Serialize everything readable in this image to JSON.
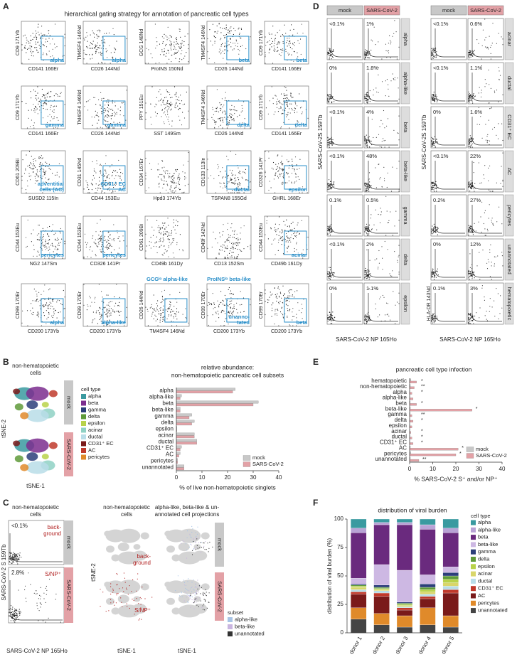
{
  "panel_labels": [
    "A",
    "B",
    "C",
    "D",
    "E",
    "F"
  ],
  "gating": {
    "title": "hierarchical gating strategy for annotation of pancreatic cell types",
    "plots": [
      {
        "y": "CD9 171Yb",
        "x": "CD141 166Er",
        "labels": [
          "alpha"
        ]
      },
      {
        "y": "TM4SF4 146Nd",
        "x": "CD26 144Nd",
        "labels": [
          "alpha"
        ]
      },
      {
        "y": "GCG 148Nd",
        "x": "ProINS 150Nd"
      },
      {
        "y": "TM4SF4 146Nd",
        "x": "CD26 144Nd",
        "labels": [
          "beta"
        ]
      },
      {
        "y": "CD9 171Yb",
        "x": "CD141 166Er",
        "labels": [
          "beta"
        ]
      },
      {
        "y": "CD9 171Yb",
        "x": "CD141 166Er",
        "labels": [
          "gamma"
        ]
      },
      {
        "y": "TM4SF4 146Nd",
        "x": "CD26 144Nd",
        "labels": [
          "gamma"
        ]
      },
      {
        "y": "PPY 151Eu",
        "x": "SST 149Sm"
      },
      {
        "y": "TM4SF4 146Nd",
        "x": "CD26 144Nd",
        "labels": [
          "delta"
        ]
      },
      {
        "y": "CD9 171Yb",
        "x": "CD141 166Er",
        "labels": [
          "delta"
        ]
      },
      {
        "y": "CD61 209Bi",
        "x": "SUSD2 115In",
        "labels": [
          "adventitial",
          "cells (AC)"
        ]
      },
      {
        "y": "CD31 145Nd",
        "x": "CD44 153Eu",
        "labels": [
          "CD31⁺ EC",
          "AC"
        ]
      },
      {
        "y": "CD34 167Er",
        "x": "Hpd3 174Yb"
      },
      {
        "y": "CD133 113In",
        "x": "TSPAN8 155Gd",
        "labels": [
          "ductal"
        ]
      },
      {
        "y": "CD326 141Pr",
        "x": "GHRL 168Er",
        "labels": [
          "epsilon"
        ]
      },
      {
        "y": "CD44 153Eu",
        "x": "NG2 147Sm",
        "labels": [
          "pericytes"
        ]
      },
      {
        "y": "CD44 153Eu",
        "x": "CD326 141Pr",
        "labels": [
          "pericytes"
        ]
      },
      {
        "y": "CD61 209Bi",
        "x": "CD49b 161Dy"
      },
      {
        "y": "CD49f 142Nd",
        "x": "CD13 152Sm"
      },
      {
        "y": "CD44 153Eu",
        "x": "CD49b 161Dy",
        "labels": [
          "acinar"
        ]
      },
      {
        "y": "CD99 170Er",
        "x": "CD200 173Yb",
        "labels": [
          "alpha"
        ]
      },
      {
        "y": "CD99 170Er",
        "x": "CD200 173Yb",
        "labels": [
          "alpha-like"
        ]
      },
      {
        "y": "CD26 144Nd",
        "x": "TM4SF4 146Nd",
        "caption": "GCGˡᵒ alpha-like"
      },
      {
        "y": "CD99 170Er",
        "x": "CD200 173Yb",
        "caption": "ProINSˡᵒ beta-like",
        "labels": [
          "unanno-",
          "tated"
        ]
      },
      {
        "y": "CD99 170Er",
        "x": "CD200 173Yb",
        "labels": [
          "beta"
        ]
      }
    ]
  },
  "infection_grid": {
    "columns": [
      "mock",
      "SARS-CoV-2"
    ],
    "blocks": [
      {
        "y_label": "SARS-CoV-2S 159Tb",
        "x_label": "SARS-CoV-2 NP 165Ho",
        "rows": [
          {
            "name": "alpha",
            "mock": "<0.1%",
            "infected": "1%"
          },
          {
            "name": "alpha-like",
            "mock": "0%",
            "infected": "1.8%"
          },
          {
            "name": "beta",
            "mock": "<0.1%",
            "infected": "4%"
          },
          {
            "name": "beta-like",
            "mock": "<0.1%",
            "infected": "48%"
          },
          {
            "name": "gamma",
            "mock": "0.1%",
            "infected": "0.5%"
          },
          {
            "name": "delta",
            "mock": "<0.1%",
            "infected": "2%"
          },
          {
            "name": "epsilon",
            "mock": "0%",
            "infected": "1.1%"
          }
        ]
      },
      {
        "y_label": "SARS-CoV-2S 159Tb",
        "x_label": "SARS-CoV-2 NP 165Ho",
        "rows": [
          {
            "name": "acinar",
            "mock": "<0.1%",
            "infected": "0.6%"
          },
          {
            "name": "ductal",
            "mock": "<0.1%",
            "infected": "1.1%"
          },
          {
            "name": "CD31⁺ EC",
            "mock": "0%",
            "infected": "1.6%"
          },
          {
            "name": "AC",
            "mock": "<0.1%",
            "infected": "22%"
          },
          {
            "name": "pericytes",
            "mock": "0.2%",
            "infected": "27%"
          },
          {
            "name": "unannotated",
            "mock": "0%",
            "infected": "12%"
          },
          {
            "name": "hematopoietic",
            "mock": "0.1%",
            "infected": "3%",
            "y_label": "HLA-DR 143Nd"
          }
        ]
      }
    ]
  },
  "tsne": {
    "title": [
      "non-hematopoietic",
      "cells"
    ],
    "legend_title": "cell type",
    "legend": [
      {
        "name": "alpha",
        "color": "#3a9aa0"
      },
      {
        "name": "beta",
        "color": "#7b2d8e"
      },
      {
        "name": "gamma",
        "color": "#2c3e7a"
      },
      {
        "name": "delta",
        "color": "#5f9a3a"
      },
      {
        "name": "epsilon",
        "color": "#b8d24a"
      },
      {
        "name": "acinar",
        "color": "#8fd1c4"
      },
      {
        "name": "ductal",
        "color": "#b9dde8"
      },
      {
        "name": "CD31⁺ EC",
        "color": "#7a1a1a"
      },
      {
        "name": "AC",
        "color": "#c0392b"
      },
      {
        "name": "pericytes",
        "color": "#e08a2a"
      }
    ],
    "conditions": [
      "mock",
      "SARS-CoV-2"
    ],
    "y_label": "tSNE-2",
    "x_label": "tSNE-1"
  },
  "infection_example": {
    "title": [
      "non-hematopoietic",
      "cells"
    ],
    "y_label": "SARS-CoV-2 S 159Tb",
    "x_label": "SARS-CoV-2 NP 165Ho",
    "conditions": [
      "mock",
      "SARS-CoV-2"
    ],
    "percent": [
      "<0.1%",
      "2.8%"
    ],
    "gate_labels": [
      [
        "back-",
        "ground"
      ],
      [
        "S/NP⁺"
      ]
    ]
  },
  "projections": {
    "titles": [
      [
        "non-hematopoietic",
        "cells"
      ],
      [
        "alpha-like, beta-like & un-",
        "annotated cell projections"
      ]
    ],
    "y_label": "tSNE-2",
    "x_label": "tSNE-1",
    "legend_title": "subset",
    "legend": [
      {
        "name": "alpha-like",
        "color": "#a8c4e6"
      },
      {
        "name": "beta-like",
        "color": "#c9b5e0"
      },
      {
        "name": "unannotated",
        "color": "#333333"
      }
    ]
  },
  "chart_data": [
    {
      "type": "bar",
      "orientation": "horizontal",
      "title": [
        "relative abundance:",
        "non-hematopoietic pancreatic cell subsets"
      ],
      "categories": [
        "alpha",
        "alpha-like",
        "beta",
        "beta-like",
        "gamma",
        "delta",
        "epsilon",
        "acinar",
        "ductal",
        "CD31⁺ EC",
        "AC",
        "pericytes",
        "unannotated"
      ],
      "series": [
        {
          "name": "mock",
          "color": "#c8c8c8",
          "values": [
            23,
            2,
            32,
            1.5,
            6,
            7,
            0.2,
            7,
            8,
            2,
            1.5,
            0.5,
            3
          ]
        },
        {
          "name": "SARS-CoV-2",
          "color": "#e3a1a6",
          "values": [
            22,
            1.5,
            30,
            1.5,
            5,
            6,
            0.2,
            7,
            8,
            1.5,
            1,
            0.5,
            3
          ]
        }
      ],
      "xlim": [
        0,
        40
      ],
      "xticks": [
        0,
        10,
        20,
        30,
        40
      ],
      "x_label": "% of live non-hematopoietic singlets",
      "legend": "bottom-right"
    },
    {
      "type": "bar",
      "orientation": "horizontal",
      "title": [
        "pancreatic cell type infection"
      ],
      "categories": [
        "hematopoietic",
        "non-hematopoietic",
        "alpha",
        "alpha-like",
        "beta",
        "beta-like",
        "gamma",
        "delta",
        "epsilon",
        "acinar",
        "ductal",
        "CD31⁺ EC",
        "AC",
        "pericytes",
        "unannotated"
      ],
      "series": [
        {
          "name": "mock",
          "color": "#c8c8c8",
          "values": [
            0.5,
            0.3,
            0.1,
            0.1,
            0.2,
            0.3,
            0.2,
            0.1,
            0.1,
            0.1,
            0.1,
            0.1,
            0.3,
            0.5,
            0.3
          ]
        },
        {
          "name": "SARS-CoV-2",
          "color": "#e3a1a6",
          "values": [
            3,
            2,
            1,
            1.5,
            3,
            27,
            1,
            1.5,
            1,
            0.5,
            1,
            1.5,
            21,
            20,
            4
          ]
        }
      ],
      "significance": [
        "*",
        "**",
        "*",
        null,
        "*",
        "*",
        "**",
        "*",
        null,
        "*",
        "*",
        "*",
        "*",
        "*",
        "**"
      ],
      "xlim": [
        0,
        40
      ],
      "xticks": [
        0,
        10,
        20,
        30,
        40
      ],
      "x_label": "% SARS-CoV-2 S⁺ and/or NP⁺",
      "legend": "bottom-right"
    },
    {
      "type": "stacked_bar",
      "title": [
        "distribution of viral burden"
      ],
      "categories": [
        "donor 1",
        "donor 2",
        "donor 3",
        "donor 4",
        "donor 5"
      ],
      "series": [
        {
          "name": "alpha",
          "color": "#3a9aa0",
          "values": [
            8,
            3,
            3,
            5,
            8
          ]
        },
        {
          "name": "alpha-like",
          "color": "#b9a3d6",
          "values": [
            4,
            2,
            2,
            4,
            4
          ]
        },
        {
          "name": "beta",
          "color": "#6a2a7e",
          "values": [
            40,
            35,
            40,
            40,
            30
          ]
        },
        {
          "name": "beta-like",
          "color": "#cdb8e3",
          "values": [
            5,
            18,
            28,
            8,
            5
          ]
        },
        {
          "name": "gamma",
          "color": "#2c3e7a",
          "values": [
            1,
            2,
            1,
            3,
            3
          ]
        },
        {
          "name": "delta",
          "color": "#5f9a3a",
          "values": [
            1,
            1,
            1,
            2,
            3
          ]
        },
        {
          "name": "epsilon",
          "color": "#b8d24a",
          "values": [
            1,
            1,
            1,
            2,
            3
          ]
        },
        {
          "name": "acinar",
          "color": "#d9d66a",
          "values": [
            2,
            1,
            1,
            2,
            3
          ]
        },
        {
          "name": "ductal",
          "color": "#b9dde8",
          "values": [
            2,
            2,
            1,
            2,
            3
          ]
        },
        {
          "name": "CD31⁺ EC",
          "color": "#c0392b",
          "values": [
            2,
            3,
            2,
            2,
            3
          ]
        },
        {
          "name": "AC",
          "color": "#7a1a1a",
          "values": [
            12,
            15,
            5,
            8,
            20
          ]
        },
        {
          "name": "pericytes",
          "color": "#e08a2a",
          "values": [
            10,
            10,
            10,
            15,
            10
          ]
        },
        {
          "name": "unannotated",
          "color": "#444444",
          "values": [
            12,
            7,
            5,
            7,
            5
          ]
        }
      ],
      "ylim": [
        0,
        100
      ],
      "yticks": [
        0,
        25,
        50,
        75,
        100
      ],
      "y_label": "distribution of viral burden (%)",
      "legend_title": "cell type",
      "legend": "right"
    }
  ]
}
